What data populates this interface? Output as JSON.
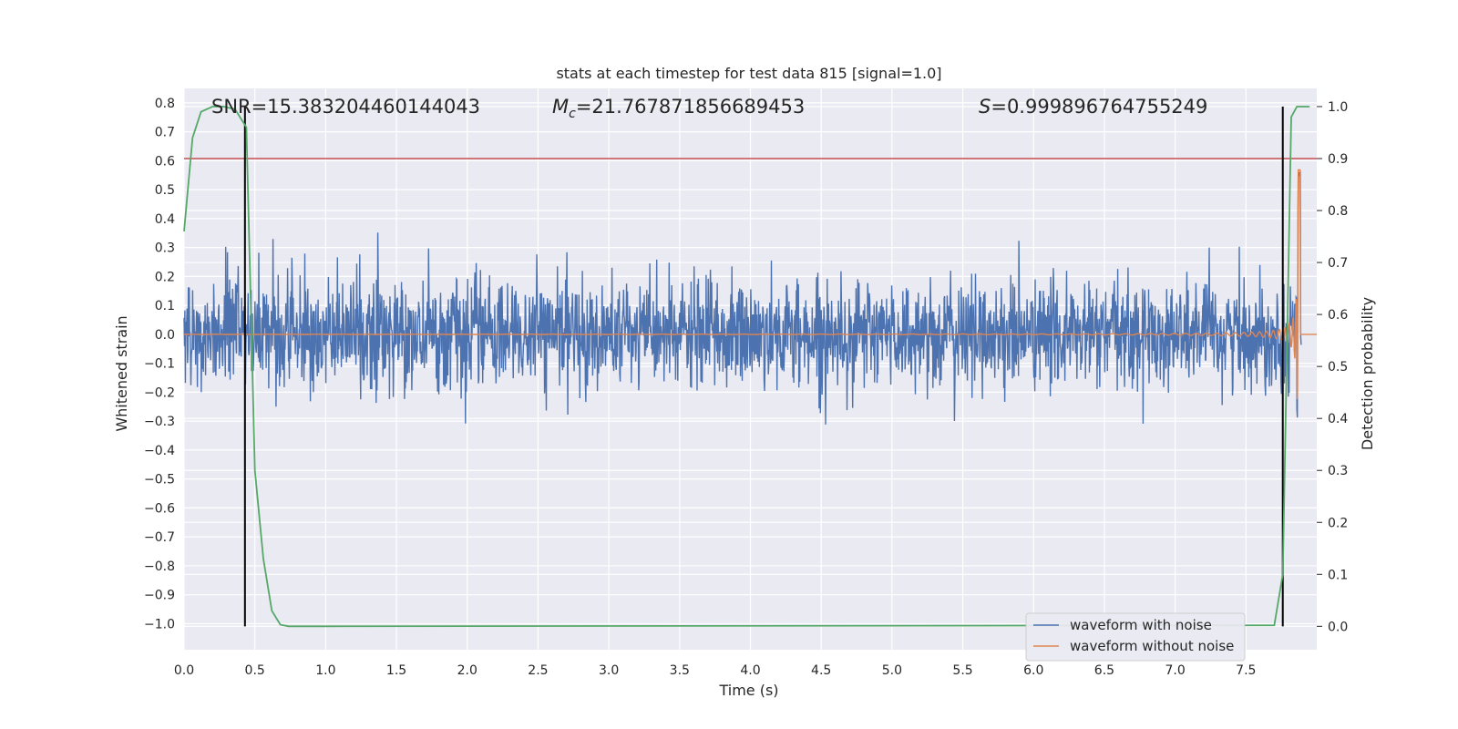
{
  "chart_data": {
    "type": "line",
    "title": "stats at each timestep for test data 815 [signal=1.0]",
    "xlabel": "Time (s)",
    "ylabel": "Whitened strain",
    "ylabel_right": "Detection probability",
    "xlim": [
      0.0,
      8.0
    ],
    "ylim": [
      -1.09,
      0.85
    ],
    "ylim_right": [
      -0.045,
      1.035
    ],
    "xticks": [
      "0.0",
      "0.5",
      "1.0",
      "1.5",
      "2.0",
      "2.5",
      "3.0",
      "3.5",
      "4.0",
      "4.5",
      "5.0",
      "5.5",
      "6.0",
      "6.5",
      "7.0",
      "7.5"
    ],
    "xtick_values": [
      0.0,
      0.5,
      1.0,
      1.5,
      2.0,
      2.5,
      3.0,
      3.5,
      4.0,
      4.5,
      5.0,
      5.5,
      6.0,
      6.5,
      7.0,
      7.5
    ],
    "yticks": [
      "0.8",
      "0.7",
      "0.6",
      "0.5",
      "0.4",
      "0.3",
      "0.2",
      "0.1",
      "0.0",
      "−0.1",
      "−0.2",
      "−0.3",
      "−0.4",
      "−0.5",
      "−0.6",
      "−0.7",
      "−0.8",
      "−0.9",
      "−1.0"
    ],
    "ytick_values": [
      0.8,
      0.7,
      0.6,
      0.5,
      0.4,
      0.3,
      0.2,
      0.1,
      0.0,
      -0.1,
      -0.2,
      -0.3,
      -0.4,
      -0.5,
      -0.6,
      -0.7,
      -0.8,
      -0.9,
      -1.0
    ],
    "yticks_right": [
      "1.0",
      "0.9",
      "0.8",
      "0.7",
      "0.6",
      "0.5",
      "0.4",
      "0.3",
      "0.2",
      "0.1",
      "0.0"
    ],
    "ytick_values_right": [
      1.0,
      0.9,
      0.8,
      0.7,
      0.6,
      0.5,
      0.4,
      0.3,
      0.2,
      0.1,
      0.0
    ],
    "annotations": {
      "snr": "SNR=15.383204460144043",
      "mc": "=21.767871856689453",
      "mc_symbol": "M",
      "mc_sub": "c",
      "s_value": "=0.999896764755249",
      "s_symbol": "S"
    },
    "grid": true,
    "legend_position": "lower right",
    "series": [
      {
        "name": "waveform with noise",
        "color": "#4c72b0",
        "noise_amplitude": 0.22,
        "peak_max": 0.56,
        "peak_min": -0.54
      },
      {
        "name": "waveform without noise",
        "color": "#dd8452",
        "chirp": true,
        "merger_time": 7.87,
        "peak": 0.74
      },
      {
        "name": "detection probability",
        "color": "#55a868",
        "axis": "right",
        "x": [
          0.0,
          0.06,
          0.12,
          0.2,
          0.28,
          0.36,
          0.44,
          0.5,
          0.56,
          0.62,
          0.68,
          0.74,
          0.8,
          1.0,
          7.7,
          7.76,
          7.82,
          7.86,
          7.95
        ],
        "values": [
          0.76,
          0.94,
          0.99,
          1.0,
          1.0,
          0.995,
          0.96,
          0.3,
          0.13,
          0.03,
          0.003,
          0.0,
          0.0,
          0.0,
          0.002,
          0.1,
          0.98,
          1.0,
          1.0
        ]
      }
    ],
    "threshold_line": {
      "y_right": 0.9,
      "color": "#c44e52"
    },
    "vertical_lines": [
      0.43,
      7.76
    ]
  }
}
